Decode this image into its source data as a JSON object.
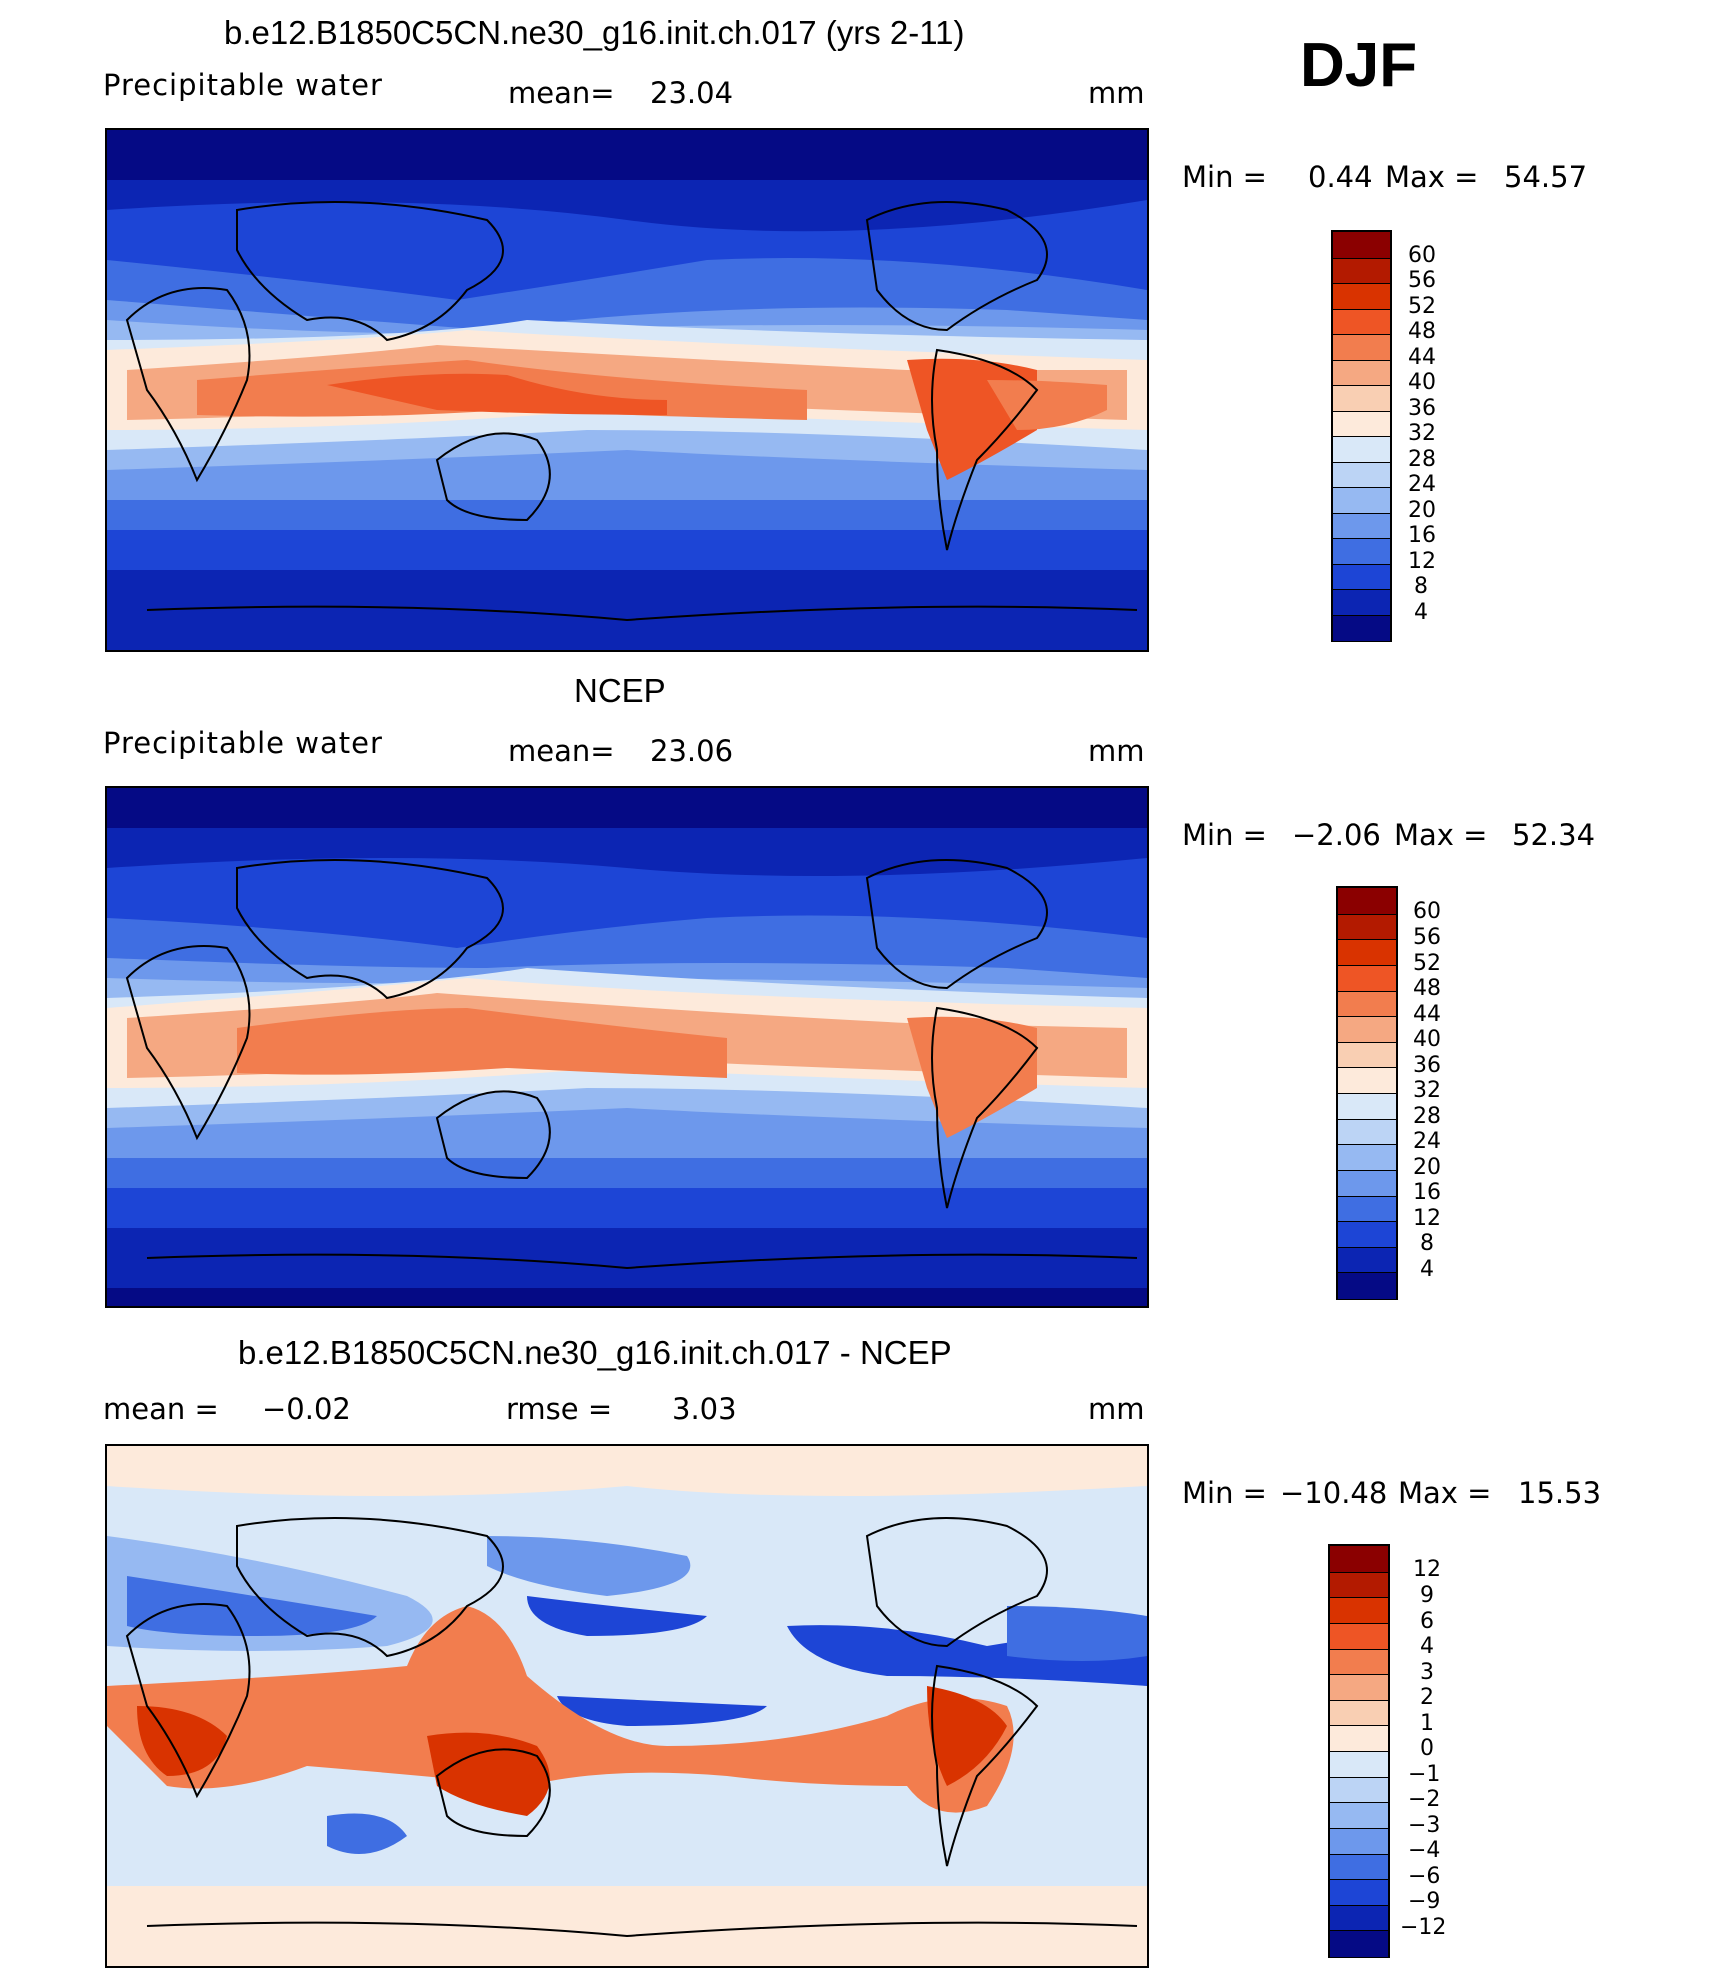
{
  "season": "DJF",
  "panels": [
    {
      "title": "b.e12.B1850C5CN.ne30_g16.init.ch.017 (yrs 2-11)",
      "left_label": "Precipitable water",
      "mid_label": "mean=",
      "mid_value": "23.04",
      "units": "mm",
      "min_label": "Min =",
      "min_value": "0.44",
      "max_label": "Max =",
      "max_value": "54.57",
      "legend": [
        "60",
        "56",
        "52",
        "48",
        "44",
        "40",
        "36",
        "32",
        "28",
        "24",
        "20",
        "16",
        "12",
        "8",
        "4"
      ]
    },
    {
      "title": "NCEP",
      "left_label": "Precipitable water",
      "mid_label": "mean=",
      "mid_value": "23.06",
      "units": "mm",
      "min_label": "Min =",
      "min_value": "−2.06",
      "max_label": "Max =",
      "max_value": "52.34",
      "legend": [
        "60",
        "56",
        "52",
        "48",
        "44",
        "40",
        "36",
        "32",
        "28",
        "24",
        "20",
        "16",
        "12",
        "8",
        "4"
      ]
    },
    {
      "title": "b.e12.B1850C5CN.ne30_g16.init.ch.017 - NCEP",
      "left_label": "mean =",
      "left_value": "−0.02",
      "mid_label": "rmse =",
      "mid_value": "3.03",
      "units": "mm",
      "min_label": "Min =",
      "min_value": "−10.48",
      "max_label": "Max =",
      "max_value": "15.53",
      "legend": [
        "12",
        "9",
        "6",
        "4",
        "3",
        "2",
        "1",
        "0",
        "−1",
        "−2",
        "−3",
        "−4",
        "−6",
        "−9",
        "−12"
      ]
    }
  ],
  "colors": {
    "scale": [
      "#8b0000",
      "#b31a00",
      "#d93300",
      "#ee5525",
      "#f27d4e",
      "#f5a882",
      "#f9cfb3",
      "#fdeadb",
      "#d9e8f8",
      "#bcd4f5",
      "#96b9f2",
      "#6d98ec",
      "#3f6ee2",
      "#1d45d6",
      "#0c25b3",
      "#050a85"
    ],
    "land_line": "#000000",
    "background": "#ffffff"
  }
}
